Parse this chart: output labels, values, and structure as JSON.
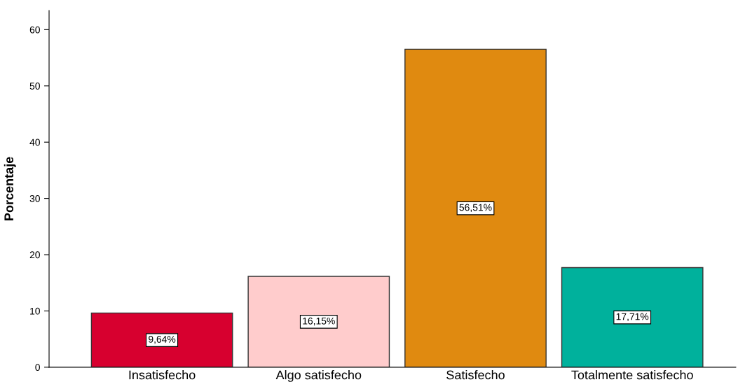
{
  "chart_data": {
    "type": "bar",
    "ylabel": "Porcentaje",
    "categories": [
      "Insatisfecho",
      "Algo satisfecho",
      "Satisfecho",
      "Totalmente satisfecho"
    ],
    "values": [
      9.64,
      16.15,
      56.51,
      17.71
    ],
    "colors": [
      "#d7002f",
      "#ffcccc",
      "#e08a10",
      "#00b19c"
    ],
    "value_labels": [
      "9,64%",
      "16,15%",
      "56,51%",
      "17,71%"
    ],
    "ylim": [
      0,
      63.4
    ],
    "yticks": [
      0,
      10,
      20,
      30,
      40,
      50,
      60
    ],
    "grid": false,
    "legend": false
  }
}
